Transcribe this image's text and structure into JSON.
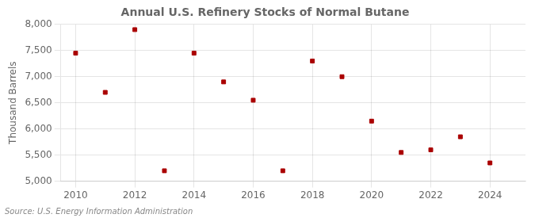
{
  "chart_data": {
    "type": "scatter",
    "title": "Annual U.S. Refinery Stocks of Normal Butane",
    "ylabel": "Thousand Barrels",
    "source": "Source: U.S. Energy Information Administration",
    "x": [
      2010,
      2011,
      2012,
      2013,
      2014,
      2015,
      2016,
      2017,
      2018,
      2019,
      2020,
      2021,
      2022,
      2023,
      2024
    ],
    "values": [
      7450,
      6700,
      7900,
      5200,
      7450,
      6900,
      6550,
      5200,
      7300,
      7000,
      6150,
      5550,
      5600,
      5850,
      5350
    ],
    "color": "#aa0000",
    "marker": "square",
    "xlim": [
      2009.5,
      2025.2
    ],
    "xticks": [
      2010,
      2012,
      2014,
      2016,
      2018,
      2020,
      2022,
      2024
    ],
    "ylim": [
      5000,
      8000
    ],
    "yticks": [
      {
        "value": 5000,
        "label": "5,000"
      },
      {
        "value": 5500,
        "label": "5,500"
      },
      {
        "value": 6000,
        "label": "6,000"
      },
      {
        "value": 6500,
        "label": "6,500"
      },
      {
        "value": 7000,
        "label": "7,000"
      },
      {
        "value": 7500,
        "label": "7,500"
      },
      {
        "value": 8000,
        "label": "8,000"
      }
    ],
    "grid": true
  }
}
